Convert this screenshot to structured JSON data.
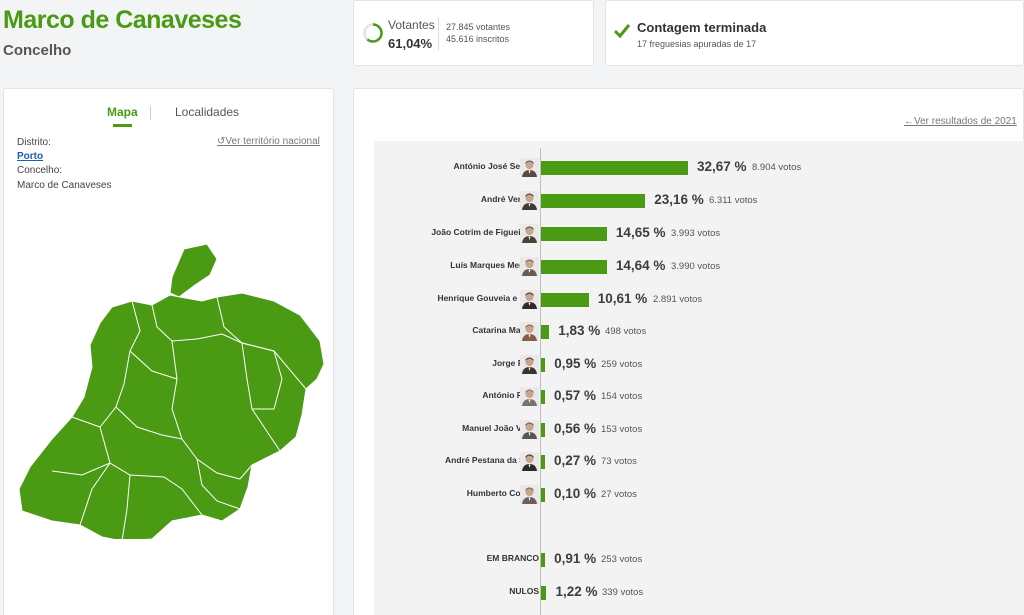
{
  "header": {
    "title": "Marco de Canaveses",
    "subtitle": "Concelho"
  },
  "turnout": {
    "label": "Votantes",
    "percent_text": "61,04%",
    "percent_value": 61.04,
    "voters_text": "27.845 votantes",
    "registered_text": "45.616 inscritos"
  },
  "count": {
    "title": "Contagem terminada",
    "subtitle": "17 freguesias apuradas de 17"
  },
  "map_panel": {
    "tabs": [
      "Mapa",
      "Localidades"
    ],
    "district_label": "Distrito:",
    "district_value": "Porto",
    "council_label": "Concelho:",
    "council_value": "Marco de Canaveses",
    "national_link": "Ver território nacional"
  },
  "results": {
    "prev_link": "Ver resultados de 2021",
    "accent": "#4a9a14",
    "candidates": [
      {
        "name": "António José Seguro",
        "pct": "32,67 %",
        "value": 32.67,
        "votes": "8.904 votos"
      },
      {
        "name": "André Ventura",
        "pct": "23,16 %",
        "value": 23.16,
        "votes": "6.311 votos"
      },
      {
        "name": "João Cotrim de Figueiredo",
        "pct": "14,65 %",
        "value": 14.65,
        "votes": "3.993 votos"
      },
      {
        "name": "Luís Marques Mendes",
        "pct": "14,64 %",
        "value": 14.64,
        "votes": "3.990 votos"
      },
      {
        "name": "Henrique Gouveia e Melo",
        "pct": "10,61 %",
        "value": 10.61,
        "votes": "2.891 votos"
      },
      {
        "name": "Catarina Martins",
        "pct": "1,83 %",
        "value": 1.83,
        "votes": "498 votos"
      },
      {
        "name": "Jorge Pinto",
        "pct": "0,95 %",
        "value": 0.95,
        "votes": "259 votos"
      },
      {
        "name": "António Filipe",
        "pct": "0,57 %",
        "value": 0.57,
        "votes": "154 votos"
      },
      {
        "name": "Manuel João Vieira",
        "pct": "0,56 %",
        "value": 0.56,
        "votes": "153 votos"
      },
      {
        "name": "André Pestana da Silva",
        "pct": "0,27 %",
        "value": 0.27,
        "votes": "73 votos"
      },
      {
        "name": "Humberto Correia",
        "pct": "0,10 %",
        "value": 0.1,
        "votes": "27 votos"
      }
    ],
    "others": [
      {
        "name": "EM BRANCO",
        "pct": "0,91 %",
        "value": 0.91,
        "votes": "253 votos"
      },
      {
        "name": "NULOS",
        "pct": "1,22 %",
        "value": 1.22,
        "votes": "339 votos"
      }
    ]
  }
}
